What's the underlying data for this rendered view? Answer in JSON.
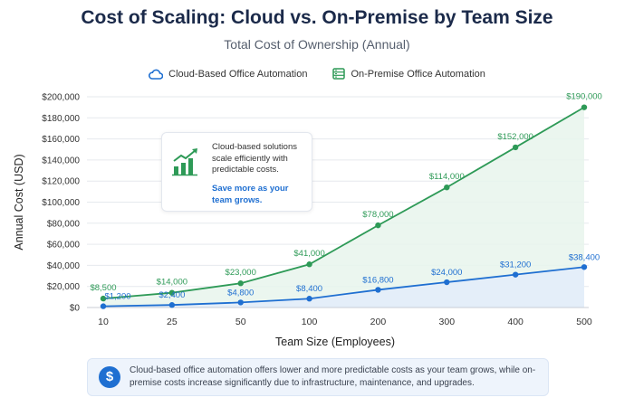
{
  "chart_data": {
    "type": "line",
    "title": "Cost of Scaling: Cloud vs. On-Premise by Team Size",
    "subtitle": "Total Cost of Ownership (Annual)",
    "xlabel": "Team Size (Employees)",
    "ylabel": "Annual Cost (USD)",
    "categories": [
      "10",
      "25",
      "50",
      "100",
      "200",
      "300",
      "400",
      "500"
    ],
    "ylim": [
      0,
      200000
    ],
    "yticks": [
      0,
      20000,
      40000,
      60000,
      80000,
      100000,
      120000,
      140000,
      160000,
      180000,
      200000
    ],
    "ytick_labels": [
      "$0",
      "$20,000",
      "$40,000",
      "$60,000",
      "$80,000",
      "$100,000",
      "$120,000",
      "$140,000",
      "$160,000",
      "$180,000",
      "$200,000"
    ],
    "grid": true,
    "legend_position": "top-center",
    "series": [
      {
        "name": "Cloud-Based Office Automation",
        "color": "#1f6fd1",
        "icon": "cloud-icon",
        "values": [
          1200,
          2400,
          4800,
          8400,
          16800,
          24000,
          31200,
          38400
        ],
        "labels": [
          "$1,200",
          "$2,400",
          "$4,800",
          "$8,400",
          "$16,800",
          "$24,000",
          "$31,200",
          "$38,400"
        ]
      },
      {
        "name": "On-Premise Office Automation",
        "color": "#2e9a57",
        "icon": "server-icon",
        "values": [
          8500,
          14000,
          23000,
          41000,
          78000,
          114000,
          152000,
          190000
        ],
        "labels": [
          "$8,500",
          "$14,000",
          "$23,000",
          "$41,000",
          "$78,000",
          "$114,000",
          "$152,000",
          "$190,000"
        ]
      }
    ],
    "annotations": {
      "callout_text": "Cloud-based solutions scale efficiently with predictable costs.",
      "callout_accent": "Save more as your team grows.",
      "callout_icon": "growth-chart-icon",
      "footnote": "Cloud-based office automation offers lower and more predictable costs as your team grows, while on-premise costs increase significantly due to infrastructure, maintenance, and upgrades.",
      "footnote_icon": "dollar-icon"
    }
  }
}
